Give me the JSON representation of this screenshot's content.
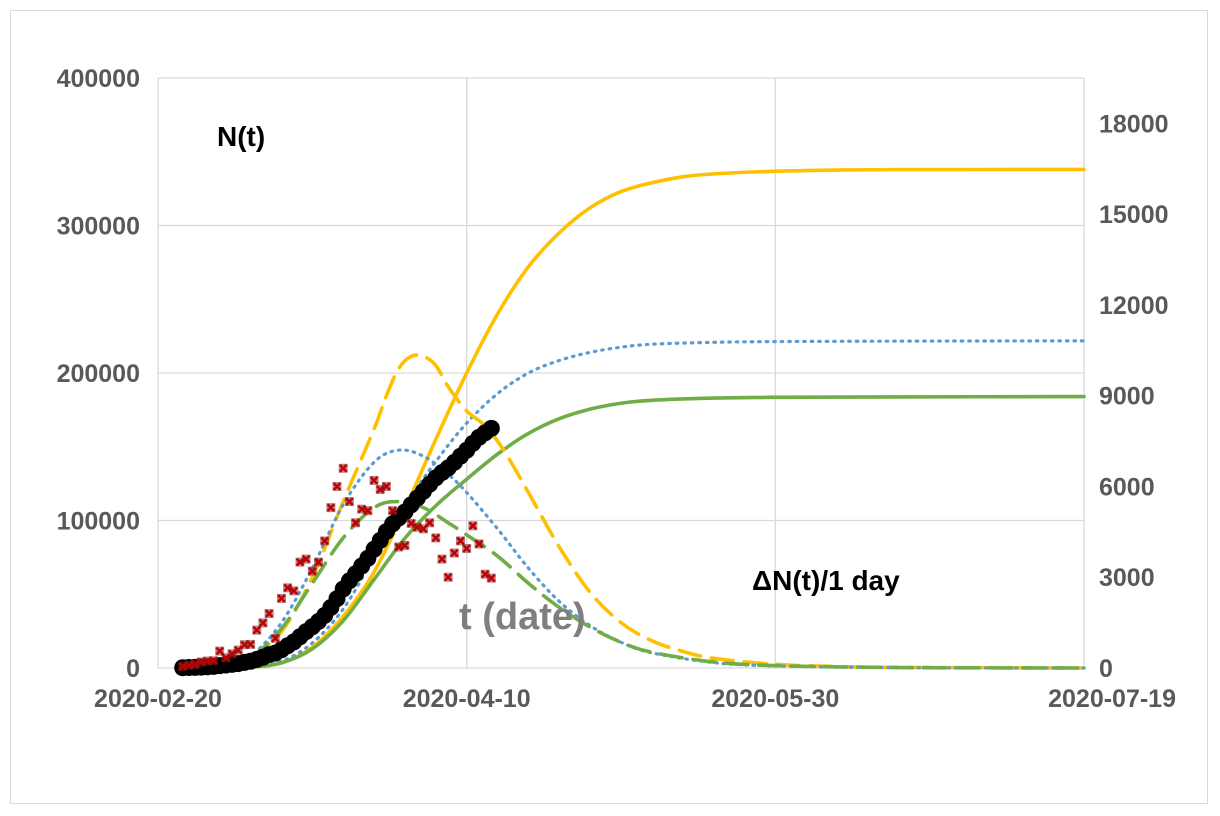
{
  "chart_data": {
    "type": "line",
    "x_axis": {
      "type": "date",
      "range": [
        "2020-02-20",
        "2020-07-19"
      ],
      "tick_labels": [
        "2020-02-20",
        "2020-04-10",
        "2020-05-30",
        "2020-07-19"
      ],
      "gridlines": true
    },
    "y_axis_left": {
      "range": [
        0,
        400000
      ],
      "tick_labels": [
        "0",
        "100000",
        "200000",
        "300000",
        "400000"
      ],
      "gridlines": true
    },
    "y_axis_right": {
      "range": [
        0,
        19500
      ],
      "tick_labels": [
        "0",
        "3000",
        "6000",
        "9000",
        "12000",
        "15000",
        "18000"
      ]
    },
    "annotations": {
      "left_series_label": "N(t)",
      "right_series_label": "ΔN(t)/1 day",
      "x_label": "t (date)"
    },
    "legend": "none",
    "colors": {
      "orange": "#FFC000",
      "blue": "#5B9BD5",
      "green": "#70AD47",
      "observed_cumulative": "#000000",
      "observed_daily": "#C00000",
      "grid": "#d9d9d9",
      "tick_text": "#595959",
      "annotation_gray": "#7f7f7f"
    },
    "series": [
      {
        "style": "solid",
        "color": "orange",
        "axis": "left",
        "points": [
          [
            "2020-03-01",
            0
          ],
          [
            "2020-03-06",
            600
          ],
          [
            "2020-03-11",
            3500
          ],
          [
            "2020-03-16",
            14000
          ],
          [
            "2020-03-21",
            35000
          ],
          [
            "2020-03-26",
            65000
          ],
          [
            "2020-03-31",
            108000
          ],
          [
            "2020-04-05",
            155000
          ],
          [
            "2020-04-10",
            200000
          ],
          [
            "2020-04-15",
            240000
          ],
          [
            "2020-04-20",
            272000
          ],
          [
            "2020-04-25",
            295000
          ],
          [
            "2020-04-30",
            312000
          ],
          [
            "2020-05-05",
            323000
          ],
          [
            "2020-05-10",
            329000
          ],
          [
            "2020-05-15",
            333000
          ],
          [
            "2020-05-20",
            335000
          ],
          [
            "2020-05-30",
            336800
          ],
          [
            "2020-06-09",
            337600
          ],
          [
            "2020-06-19",
            337900
          ],
          [
            "2020-07-19",
            338000
          ]
        ]
      },
      {
        "style": "dotted",
        "color": "blue",
        "axis": "left",
        "points": [
          [
            "2020-03-01",
            0
          ],
          [
            "2020-03-06",
            800
          ],
          [
            "2020-03-11",
            4500
          ],
          [
            "2020-03-16",
            17000
          ],
          [
            "2020-03-21",
            40000
          ],
          [
            "2020-03-26",
            75000
          ],
          [
            "2020-03-31",
            110000
          ],
          [
            "2020-04-05",
            140000
          ],
          [
            "2020-04-10",
            166000
          ],
          [
            "2020-04-15",
            186000
          ],
          [
            "2020-04-20",
            200000
          ],
          [
            "2020-04-25",
            208500
          ],
          [
            "2020-04-30",
            214000
          ],
          [
            "2020-05-05",
            217500
          ],
          [
            "2020-05-10",
            219500
          ],
          [
            "2020-05-20",
            220800
          ],
          [
            "2020-05-30",
            221300
          ],
          [
            "2020-06-19",
            221600
          ],
          [
            "2020-07-19",
            221800
          ]
        ]
      },
      {
        "style": "solid",
        "color": "green",
        "axis": "left",
        "points": [
          [
            "2020-03-01",
            0
          ],
          [
            "2020-03-06",
            600
          ],
          [
            "2020-03-11",
            3500
          ],
          [
            "2020-03-16",
            13000
          ],
          [
            "2020-03-21",
            32000
          ],
          [
            "2020-03-26",
            60000
          ],
          [
            "2020-03-31",
            88000
          ],
          [
            "2020-04-05",
            110000
          ],
          [
            "2020-04-10",
            128000
          ],
          [
            "2020-04-15",
            145000
          ],
          [
            "2020-04-20",
            159000
          ],
          [
            "2020-04-25",
            169000
          ],
          [
            "2020-04-30",
            175500
          ],
          [
            "2020-05-05",
            179500
          ],
          [
            "2020-05-10",
            181500
          ],
          [
            "2020-05-20",
            183000
          ],
          [
            "2020-05-30",
            183500
          ],
          [
            "2020-06-19",
            183800
          ],
          [
            "2020-07-19",
            184000
          ]
        ]
      },
      {
        "style": "dashed",
        "color": "orange",
        "axis": "right",
        "points": [
          [
            "2020-03-01",
            0
          ],
          [
            "2020-03-06",
            350
          ],
          [
            "2020-03-11",
            1200
          ],
          [
            "2020-03-16",
            3000
          ],
          [
            "2020-03-21",
            5500
          ],
          [
            "2020-03-26",
            7900
          ],
          [
            "2020-03-28",
            9000
          ],
          [
            "2020-03-30",
            9900
          ],
          [
            "2020-04-01",
            10300
          ],
          [
            "2020-04-03",
            10300
          ],
          [
            "2020-04-05",
            10000
          ],
          [
            "2020-04-07",
            9300
          ],
          [
            "2020-04-10",
            8500
          ],
          [
            "2020-04-13",
            8000
          ],
          [
            "2020-04-16",
            7200
          ],
          [
            "2020-04-20",
            5800
          ],
          [
            "2020-04-25",
            4000
          ],
          [
            "2020-04-30",
            2500
          ],
          [
            "2020-05-05",
            1500
          ],
          [
            "2020-05-10",
            900
          ],
          [
            "2020-05-15",
            550
          ],
          [
            "2020-05-20",
            320
          ],
          [
            "2020-05-30",
            120
          ],
          [
            "2020-06-09",
            50
          ],
          [
            "2020-06-19",
            20
          ],
          [
            "2020-07-19",
            0
          ]
        ]
      },
      {
        "style": "dotted",
        "color": "blue",
        "axis": "right",
        "points": [
          [
            "2020-03-01",
            0
          ],
          [
            "2020-03-06",
            400
          ],
          [
            "2020-03-11",
            1500
          ],
          [
            "2020-03-16",
            3300
          ],
          [
            "2020-03-21",
            5400
          ],
          [
            "2020-03-26",
            6800
          ],
          [
            "2020-03-30",
            7200
          ],
          [
            "2020-04-03",
            7000
          ],
          [
            "2020-04-07",
            6400
          ],
          [
            "2020-04-10",
            5800
          ],
          [
            "2020-04-15",
            4600
          ],
          [
            "2020-04-20",
            3300
          ],
          [
            "2020-04-25",
            2200
          ],
          [
            "2020-04-30",
            1400
          ],
          [
            "2020-05-05",
            850
          ],
          [
            "2020-05-10",
            500
          ],
          [
            "2020-05-20",
            180
          ],
          [
            "2020-05-30",
            70
          ],
          [
            "2020-06-19",
            10
          ],
          [
            "2020-07-19",
            0
          ]
        ]
      },
      {
        "style": "dashed",
        "color": "green",
        "axis": "right",
        "points": [
          [
            "2020-03-01",
            0
          ],
          [
            "2020-03-06",
            350
          ],
          [
            "2020-03-11",
            1300
          ],
          [
            "2020-03-16",
            2800
          ],
          [
            "2020-03-21",
            4300
          ],
          [
            "2020-03-26",
            5300
          ],
          [
            "2020-03-30",
            5500
          ],
          [
            "2020-04-03",
            5300
          ],
          [
            "2020-04-07",
            4800
          ],
          [
            "2020-04-10",
            4400
          ],
          [
            "2020-04-15",
            3700
          ],
          [
            "2020-04-20",
            2800
          ],
          [
            "2020-04-25",
            2000
          ],
          [
            "2020-04-30",
            1350
          ],
          [
            "2020-05-05",
            850
          ],
          [
            "2020-05-10",
            520
          ],
          [
            "2020-05-20",
            200
          ],
          [
            "2020-05-30",
            80
          ],
          [
            "2020-06-19",
            15
          ],
          [
            "2020-07-19",
            0
          ]
        ]
      },
      {
        "style": "markers-circle",
        "color": "observed_cumulative",
        "axis": "left",
        "points": [
          [
            "2020-02-24",
            200
          ],
          [
            "2020-02-25",
            300
          ],
          [
            "2020-02-26",
            400
          ],
          [
            "2020-02-27",
            600
          ],
          [
            "2020-02-28",
            800
          ],
          [
            "2020-02-29",
            1100
          ],
          [
            "2020-03-01",
            1600
          ],
          [
            "2020-03-02",
            2000
          ],
          [
            "2020-03-03",
            2500
          ],
          [
            "2020-03-04",
            3000
          ],
          [
            "2020-03-05",
            3800
          ],
          [
            "2020-03-06",
            4600
          ],
          [
            "2020-03-07",
            5800
          ],
          [
            "2020-03-08",
            7300
          ],
          [
            "2020-03-09",
            9100
          ],
          [
            "2020-03-10",
            10100
          ],
          [
            "2020-03-11",
            12400
          ],
          [
            "2020-03-12",
            15100
          ],
          [
            "2020-03-13",
            17700
          ],
          [
            "2020-03-14",
            21200
          ],
          [
            "2020-03-15",
            24700
          ],
          [
            "2020-03-16",
            27980
          ],
          [
            "2020-03-17",
            31500
          ],
          [
            "2020-03-18",
            35700
          ],
          [
            "2020-03-19",
            41000
          ],
          [
            "2020-03-20",
            47000
          ],
          [
            "2020-03-21",
            53600
          ],
          [
            "2020-03-22",
            59100
          ],
          [
            "2020-03-23",
            63900
          ],
          [
            "2020-03-24",
            69200
          ],
          [
            "2020-03-25",
            74400
          ],
          [
            "2020-03-26",
            80500
          ],
          [
            "2020-03-27",
            86500
          ],
          [
            "2020-03-28",
            92500
          ],
          [
            "2020-03-29",
            97700
          ],
          [
            "2020-03-30",
            101700
          ],
          [
            "2020-03-31",
            105800
          ],
          [
            "2020-04-01",
            110600
          ],
          [
            "2020-04-02",
            115200
          ],
          [
            "2020-04-03",
            119800
          ],
          [
            "2020-04-04",
            124600
          ],
          [
            "2020-04-05",
            128900
          ],
          [
            "2020-04-06",
            132500
          ],
          [
            "2020-04-07",
            135600
          ],
          [
            "2020-04-08",
            139400
          ],
          [
            "2020-04-09",
            143600
          ],
          [
            "2020-04-10",
            147600
          ],
          [
            "2020-04-11",
            152300
          ],
          [
            "2020-04-12",
            156400
          ],
          [
            "2020-04-13",
            159500
          ],
          [
            "2020-04-14",
            162500
          ]
        ]
      },
      {
        "style": "markers-x",
        "color": "observed_daily",
        "axis": "right",
        "points": [
          [
            "2020-02-24",
            50
          ],
          [
            "2020-02-25",
            90
          ],
          [
            "2020-02-26",
            120
          ],
          [
            "2020-02-27",
            200
          ],
          [
            "2020-02-28",
            230
          ],
          [
            "2020-02-29",
            240
          ],
          [
            "2020-03-01",
            560
          ],
          [
            "2020-03-02",
            340
          ],
          [
            "2020-03-03",
            470
          ],
          [
            "2020-03-04",
            590
          ],
          [
            "2020-03-05",
            770
          ],
          [
            "2020-03-06",
            780
          ],
          [
            "2020-03-07",
            1250
          ],
          [
            "2020-03-08",
            1490
          ],
          [
            "2020-03-09",
            1800
          ],
          [
            "2020-03-10",
            980
          ],
          [
            "2020-03-11",
            2300
          ],
          [
            "2020-03-12",
            2650
          ],
          [
            "2020-03-13",
            2550
          ],
          [
            "2020-03-14",
            3500
          ],
          [
            "2020-03-15",
            3600
          ],
          [
            "2020-03-16",
            3200
          ],
          [
            "2020-03-17",
            3500
          ],
          [
            "2020-03-18",
            4200
          ],
          [
            "2020-03-19",
            5300
          ],
          [
            "2020-03-20",
            6000
          ],
          [
            "2020-03-21",
            6600
          ],
          [
            "2020-03-22",
            5500
          ],
          [
            "2020-03-23",
            4800
          ],
          [
            "2020-03-24",
            5250
          ],
          [
            "2020-03-25",
            5200
          ],
          [
            "2020-03-26",
            6200
          ],
          [
            "2020-03-27",
            5900
          ],
          [
            "2020-03-28",
            6000
          ],
          [
            "2020-03-29",
            5200
          ],
          [
            "2020-03-30",
            4000
          ],
          [
            "2020-03-31",
            4050
          ],
          [
            "2020-04-01",
            4780
          ],
          [
            "2020-04-02",
            4650
          ],
          [
            "2020-04-03",
            4600
          ],
          [
            "2020-04-04",
            4800
          ],
          [
            "2020-04-05",
            4300
          ],
          [
            "2020-04-06",
            3600
          ],
          [
            "2020-04-07",
            3000
          ],
          [
            "2020-04-08",
            3800
          ],
          [
            "2020-04-09",
            4200
          ],
          [
            "2020-04-10",
            3950
          ],
          [
            "2020-04-11",
            4700
          ],
          [
            "2020-04-12",
            4100
          ],
          [
            "2020-04-13",
            3100
          ],
          [
            "2020-04-14",
            2970
          ]
        ]
      }
    ]
  }
}
